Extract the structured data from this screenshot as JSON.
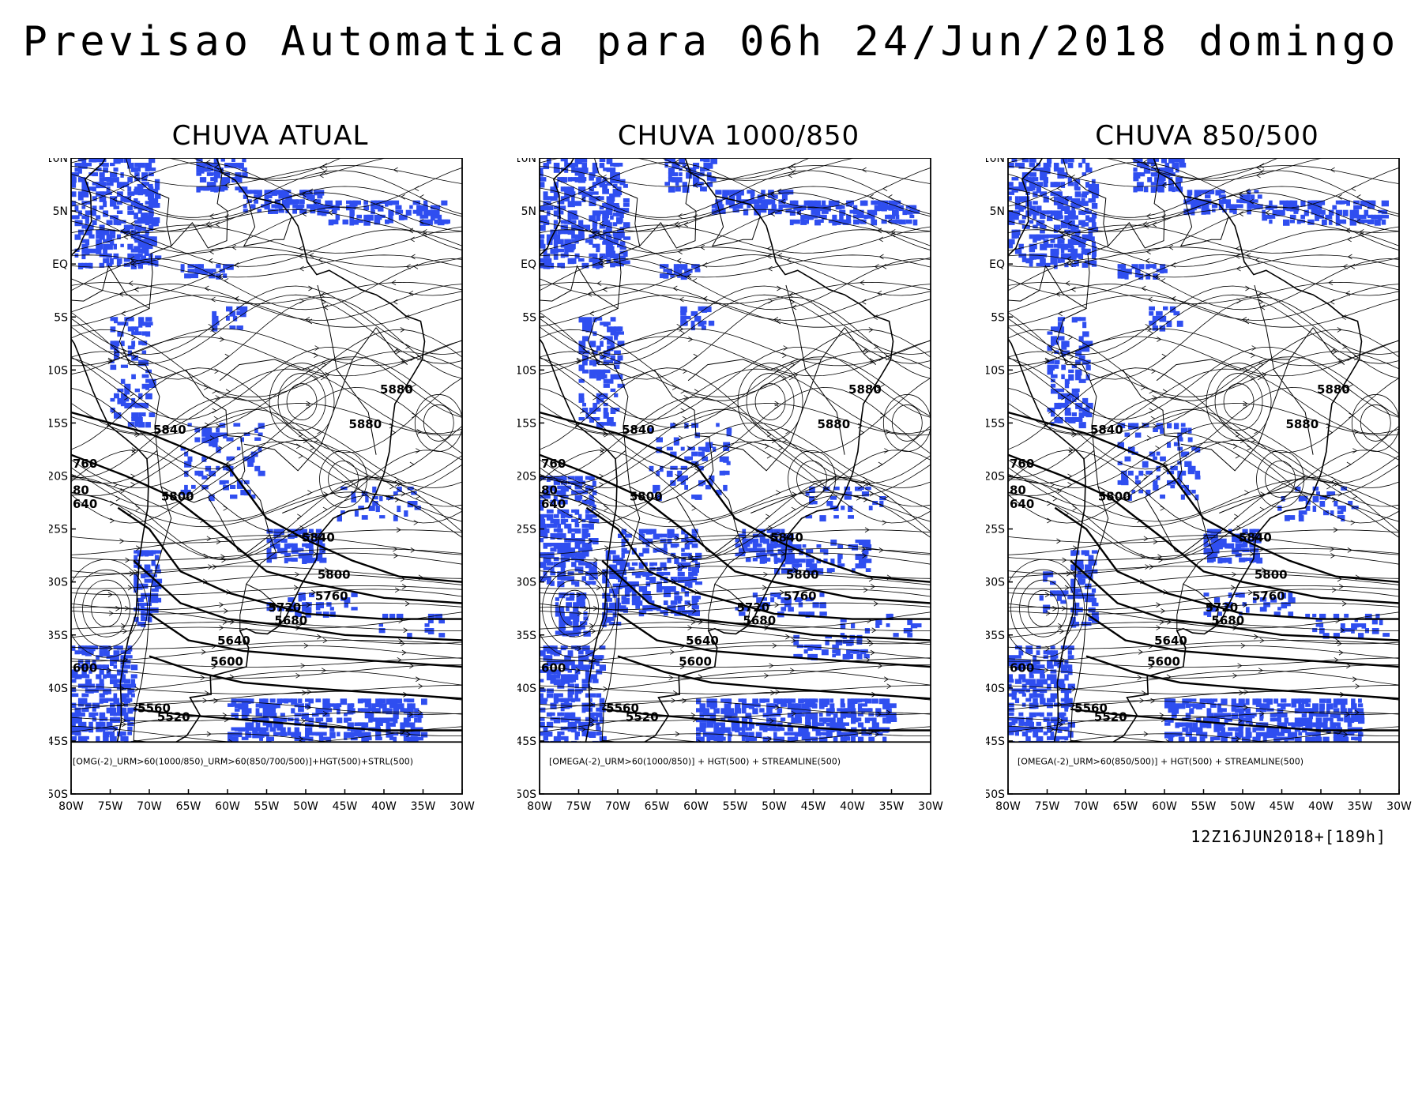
{
  "title": "Previsao Automatica para 06h 24/Jun/2018 domingo",
  "panels": [
    {
      "title": "CHUVA ATUAL",
      "legend": "[OMG(-2)_URM>60(1000/850)_URM>60(850/700/500)]+HGT(500)+STRL(500)",
      "rain_level": "current"
    },
    {
      "title": "CHUVA 1000/850",
      "legend": "[OMEGA(-2)_URM>60(1000/850)] + HGT(500) + STREAMLINE(500)",
      "rain_level": "low"
    },
    {
      "title": "CHUVA 850/500",
      "legend": "[OMEGA(-2)_URM>60(850/500)] + HGT(500) + STREAMLINE(500)",
      "rain_level": "mid"
    }
  ],
  "axes": {
    "lat_ticks": [
      "10N",
      "5N",
      "EQ",
      "5S",
      "10S",
      "15S",
      "20S",
      "25S",
      "30S",
      "35S",
      "40S",
      "45S",
      "50S"
    ],
    "lon_ticks": [
      "80W",
      "75W",
      "70W",
      "65W",
      "60W",
      "55W",
      "50W",
      "45W",
      "40W",
      "35W",
      "30W"
    ]
  },
  "contour_labels": [
    {
      "text": "5880",
      "lon": -40.5,
      "lat": -12.2
    },
    {
      "text": "5880",
      "lon": -44.5,
      "lat": -15.5
    },
    {
      "text": "5840",
      "lon": -69.5,
      "lat": -16.0
    },
    {
      "text": "5800",
      "lon": -68.5,
      "lat": -22.3
    },
    {
      "text": "5840",
      "lon": -50.5,
      "lat": -26.2
    },
    {
      "text": "5800",
      "lon": -48.5,
      "lat": -29.7
    },
    {
      "text": "5760",
      "lon": -48.8,
      "lat": -31.7
    },
    {
      "text": "5720",
      "lon": -54.8,
      "lat": -32.8
    },
    {
      "text": "5680",
      "lon": -54.0,
      "lat": -34.0
    },
    {
      "text": "5640",
      "lon": -61.3,
      "lat": -35.9
    },
    {
      "text": "5600",
      "lon": -62.2,
      "lat": -37.9
    },
    {
      "text": "5560",
      "lon": -71.5,
      "lat": -42.3
    },
    {
      "text": "5520",
      "lon": -69.0,
      "lat": -43.1
    },
    {
      "text": "760",
      "lon": -79.8,
      "lat": -19.2
    },
    {
      "text": "80",
      "lon": -79.8,
      "lat": -21.7
    },
    {
      "text": "640",
      "lon": -79.8,
      "lat": -23.0
    },
    {
      "text": "600",
      "lon": -79.8,
      "lat": -38.5
    }
  ],
  "rain_color": "#2f4ef0",
  "stamp": "12Z16JUN2018+[189h]"
}
